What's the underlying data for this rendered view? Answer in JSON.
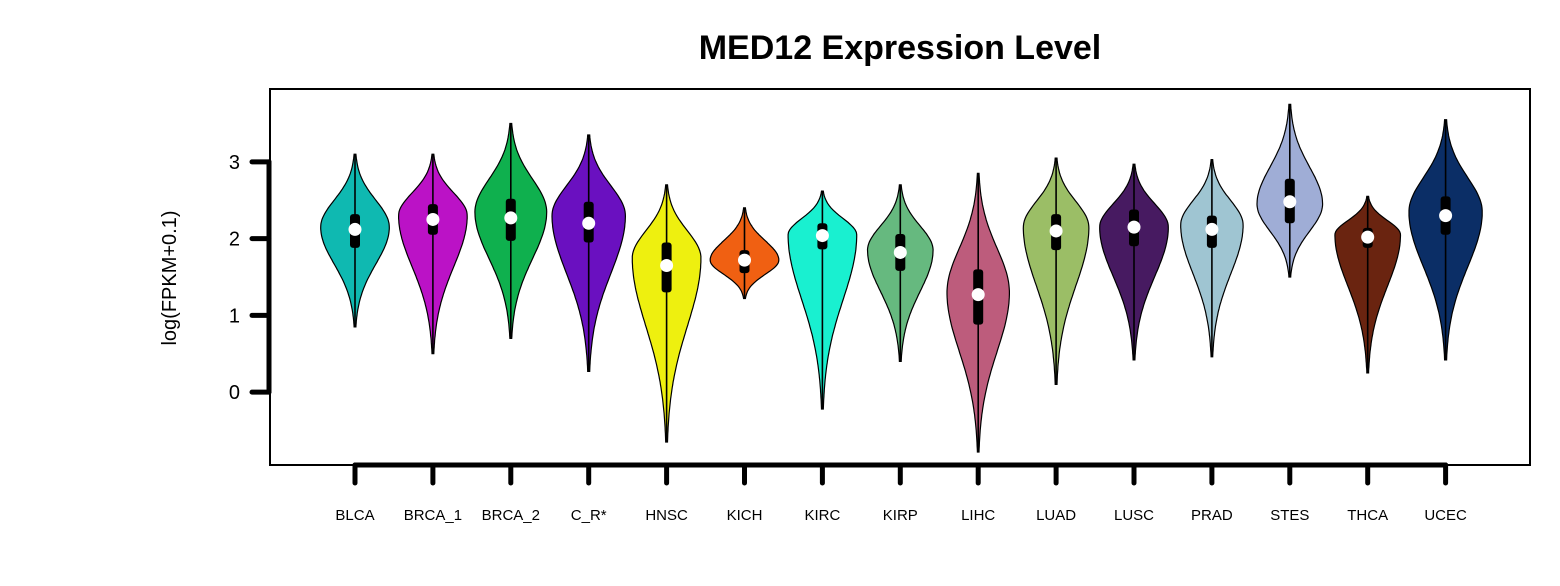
{
  "chart_data": {
    "type": "violin",
    "title": "MED12 Expression Level",
    "xlabel": "",
    "ylabel": "log(FPKM+0.1)",
    "y_ticks": [
      0,
      1,
      2,
      3
    ],
    "ylim": [
      -0.95,
      3.95
    ],
    "grid": false,
    "legend": "none",
    "categories": [
      "BLCA",
      "BRCA_1",
      "BRCA_2",
      "C_R*",
      "HNSC",
      "KICH",
      "KIRC",
      "KIRP",
      "LIHC",
      "LUAD",
      "LUSC",
      "PRAD",
      "STES",
      "THCA",
      "UCEC"
    ],
    "series": [
      {
        "category": "BLCA",
        "color": "#0fb9b1",
        "min": 0.85,
        "q1": 1.88,
        "median": 2.12,
        "q3": 2.32,
        "max": 3.1,
        "mode": 2.15,
        "halfwidth": 0.44
      },
      {
        "category": "BRCA_1",
        "color": "#bb12c6",
        "min": 0.5,
        "q1": 2.05,
        "median": 2.25,
        "q3": 2.45,
        "max": 3.1,
        "mode": 2.3,
        "halfwidth": 0.44
      },
      {
        "category": "BRCA_2",
        "color": "#0fb04e",
        "min": 0.7,
        "q1": 1.97,
        "median": 2.27,
        "q3": 2.52,
        "max": 3.5,
        "mode": 2.35,
        "halfwidth": 0.46
      },
      {
        "category": "C_R*",
        "color": "#6a10c0",
        "min": 0.27,
        "q1": 1.95,
        "median": 2.2,
        "q3": 2.48,
        "max": 3.35,
        "mode": 2.3,
        "halfwidth": 0.47
      },
      {
        "category": "HNSC",
        "color": "#eef00f",
        "min": -0.65,
        "q1": 1.3,
        "median": 1.65,
        "q3": 1.95,
        "max": 2.7,
        "mode": 1.75,
        "halfwidth": 0.44
      },
      {
        "category": "KICH",
        "color": "#f06012",
        "min": 1.22,
        "q1": 1.55,
        "median": 1.72,
        "q3": 1.85,
        "max": 2.4,
        "mode": 1.72,
        "halfwidth": 0.44
      },
      {
        "category": "KIRC",
        "color": "#19f0d0",
        "min": -0.22,
        "q1": 1.86,
        "median": 2.04,
        "q3": 2.2,
        "max": 2.62,
        "mode": 2.05,
        "halfwidth": 0.44
      },
      {
        "category": "KIRP",
        "color": "#66b97f",
        "min": 0.4,
        "q1": 1.58,
        "median": 1.82,
        "q3": 2.06,
        "max": 2.7,
        "mode": 1.85,
        "halfwidth": 0.42
      },
      {
        "category": "LIHC",
        "color": "#bd5c7c",
        "min": -0.78,
        "q1": 0.88,
        "median": 1.27,
        "q3": 1.6,
        "max": 2.85,
        "mode": 1.3,
        "halfwidth": 0.4
      },
      {
        "category": "LUAD",
        "color": "#9bbe66",
        "min": 0.1,
        "q1": 1.85,
        "median": 2.1,
        "q3": 2.32,
        "max": 3.05,
        "mode": 2.15,
        "halfwidth": 0.42
      },
      {
        "category": "LUSC",
        "color": "#471a61",
        "min": 0.42,
        "q1": 1.9,
        "median": 2.15,
        "q3": 2.38,
        "max": 2.97,
        "mode": 2.15,
        "halfwidth": 0.44
      },
      {
        "category": "PRAD",
        "color": "#9fc5d2",
        "min": 0.46,
        "q1": 1.88,
        "median": 2.12,
        "q3": 2.3,
        "max": 3.03,
        "mode": 2.18,
        "halfwidth": 0.4
      },
      {
        "category": "STES",
        "color": "#9fadd6",
        "min": 1.5,
        "q1": 2.2,
        "median": 2.48,
        "q3": 2.78,
        "max": 3.75,
        "mode": 2.45,
        "halfwidth": 0.42
      },
      {
        "category": "THCA",
        "color": "#6a2410",
        "min": 0.25,
        "q1": 1.88,
        "median": 2.02,
        "q3": 2.14,
        "max": 2.55,
        "mode": 2.05,
        "halfwidth": 0.42
      },
      {
        "category": "UCEC",
        "color": "#0b2e66",
        "min": 0.42,
        "q1": 2.05,
        "median": 2.3,
        "q3": 2.55,
        "max": 3.55,
        "mode": 2.35,
        "halfwidth": 0.47
      }
    ]
  }
}
